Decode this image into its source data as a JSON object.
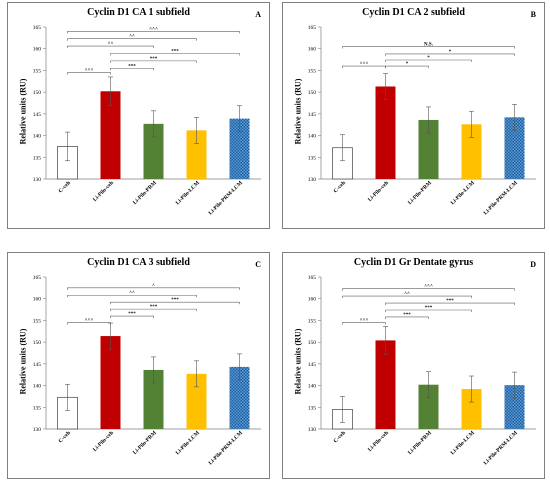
{
  "chart_data": [
    {
      "type": "bar",
      "title": "Cyclin D1 CA 1 subfield",
      "panel_label": "A",
      "ylabel": "Relative units (RU)",
      "ylim": [
        130,
        165
      ],
      "yticks": [
        130,
        135,
        140,
        145,
        150,
        155,
        160,
        165
      ],
      "categories": [
        "C-veh",
        "Li-Pilo-veh",
        "Li-Pilo-PRM",
        "Li-Pilo-LCM",
        "Li-Pilo-PRM-LCM"
      ],
      "values": [
        137.5,
        150.2,
        142.7,
        141.2,
        143.9
      ],
      "errors": [
        3.3,
        3.3,
        3.0,
        3.0,
        3.0
      ],
      "colors": [
        "#ffffff",
        "#c00000",
        "#548235",
        "#ffc000",
        "#2e75b6"
      ],
      "annotations": [
        {
          "from": 0,
          "to": 4,
          "level": 164.0,
          "label": "^^^"
        },
        {
          "from": 0,
          "to": 3,
          "level": 162.3,
          "label": "^^"
        },
        {
          "from": 0,
          "to": 2,
          "level": 160.6,
          "label": "^^"
        },
        {
          "from": 1,
          "to": 4,
          "level": 158.9,
          "label": "***"
        },
        {
          "from": 1,
          "to": 3,
          "level": 157.2,
          "label": "***"
        },
        {
          "from": 1,
          "to": 2,
          "level": 155.5,
          "label": "***"
        },
        {
          "from": 0,
          "to": 1,
          "level": 154.5,
          "label": "^^^"
        }
      ]
    },
    {
      "type": "bar",
      "title": "Cyclin D1 CA 2 subfield",
      "panel_label": "B",
      "ylabel": "Relative units (RU)",
      "ylim": [
        130,
        165
      ],
      "yticks": [
        130,
        135,
        140,
        145,
        150,
        155,
        160,
        165
      ],
      "categories": [
        "C-veh",
        "Li-Pilo-veh",
        "Li-Pilo-PRM",
        "Li-Pilo-LCM",
        "Li-Pilo-PRM-LCM"
      ],
      "values": [
        137.2,
        151.3,
        143.6,
        142.6,
        144.2
      ],
      "errors": [
        3.0,
        3.0,
        3.0,
        3.0,
        3.0
      ],
      "colors": [
        "#ffffff",
        "#c00000",
        "#548235",
        "#ffc000",
        "#2e75b6"
      ],
      "annotations": [
        {
          "from": 0,
          "to": 4,
          "level": 160.5,
          "label": "N.S."
        },
        {
          "from": 1,
          "to": 4,
          "level": 158.8,
          "label": "*"
        },
        {
          "from": 1,
          "to": 3,
          "level": 157.4,
          "label": "*"
        },
        {
          "from": 1,
          "to": 2,
          "level": 156.0,
          "label": "*"
        },
        {
          "from": 0,
          "to": 1,
          "level": 156.0,
          "label": "^^^"
        }
      ]
    },
    {
      "type": "bar",
      "title": "Cyclin D1 CA 3 subfield",
      "panel_label": "C",
      "ylabel": "Relative units (RU)",
      "ylim": [
        130,
        165
      ],
      "yticks": [
        130,
        135,
        140,
        145,
        150,
        155,
        160,
        165
      ],
      "categories": [
        "C-veh",
        "Li-Pilo-veh",
        "Li-Pilo-PRM",
        "Li-Pilo-LCM",
        "Li-Pilo-PRM-LCM"
      ],
      "values": [
        137.3,
        151.4,
        143.6,
        142.7,
        144.3
      ],
      "errors": [
        3.0,
        3.0,
        3.0,
        3.0,
        3.0
      ],
      "colors": [
        "#ffffff",
        "#c00000",
        "#548235",
        "#ffc000",
        "#2e75b6"
      ],
      "annotations": [
        {
          "from": 0,
          "to": 4,
          "level": 162.5,
          "label": "^"
        },
        {
          "from": 0,
          "to": 3,
          "level": 160.8,
          "label": "^^"
        },
        {
          "from": 1,
          "to": 4,
          "level": 159.2,
          "label": "***"
        },
        {
          "from": 1,
          "to": 3,
          "level": 157.6,
          "label": "***"
        },
        {
          "from": 1,
          "to": 2,
          "level": 156.0,
          "label": "***"
        },
        {
          "from": 0,
          "to": 1,
          "level": 154.5,
          "label": "^^^"
        }
      ]
    },
    {
      "type": "bar",
      "title": "Cyclin D1 Gr Dentate gyrus",
      "panel_label": "D",
      "ylabel": "Relative units (RU)",
      "ylim": [
        130,
        165
      ],
      "yticks": [
        130,
        135,
        140,
        145,
        150,
        155,
        160,
        165
      ],
      "categories": [
        "C-veh",
        "Li-Pilo-veh",
        "Li-Pilo-PRM",
        "Li-Pilo-LCM",
        "Li-Pilo-PRM-LCM"
      ],
      "values": [
        134.5,
        150.4,
        140.2,
        139.2,
        140.1
      ],
      "errors": [
        3.0,
        3.2,
        3.0,
        3.0,
        3.0
      ],
      "colors": [
        "#ffffff",
        "#c00000",
        "#548235",
        "#ffc000",
        "#2e75b6"
      ],
      "annotations": [
        {
          "from": 0,
          "to": 4,
          "level": 162.3,
          "label": "^^^"
        },
        {
          "from": 0,
          "to": 3,
          "level": 160.6,
          "label": "^^"
        },
        {
          "from": 1,
          "to": 4,
          "level": 159.0,
          "label": "***"
        },
        {
          "from": 1,
          "to": 3,
          "level": 157.4,
          "label": "***"
        },
        {
          "from": 1,
          "to": 2,
          "level": 155.8,
          "label": "***"
        },
        {
          "from": 0,
          "to": 1,
          "level": 154.5,
          "label": "^^^"
        }
      ]
    }
  ]
}
